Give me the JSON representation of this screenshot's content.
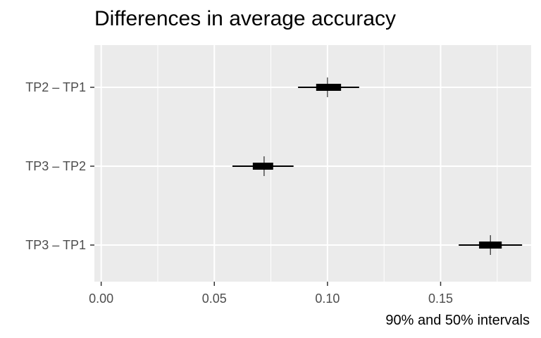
{
  "chart_data": {
    "type": "interval",
    "title": "Differences in average accuracy",
    "caption": "90% and 50% intervals",
    "xlabel": "",
    "ylabel": "",
    "xlim": [
      -0.003,
      0.19
    ],
    "x_ticks": [
      0.0,
      0.05,
      0.1,
      0.15
    ],
    "x_tick_labels": [
      "0.00",
      "0.05",
      "0.10",
      "0.15"
    ],
    "grid": true,
    "categories": [
      "TP2 – TP1",
      "TP3 – TP2",
      "TP3 – TP1"
    ],
    "intervals": [
      {
        "label": "TP2 – TP1",
        "median": 0.1,
        "inner": [
          0.095,
          0.106
        ],
        "outer": [
          0.087,
          0.114
        ]
      },
      {
        "label": "TP3 – TP2",
        "median": 0.072,
        "inner": [
          0.067,
          0.076
        ],
        "outer": [
          0.058,
          0.085
        ]
      },
      {
        "label": "TP3 – TP1",
        "median": 0.172,
        "inner": [
          0.167,
          0.177
        ],
        "outer": [
          0.158,
          0.186
        ]
      }
    ],
    "colors": {
      "panel": "#ebebeb",
      "grid": "#ffffff",
      "interval": "#000000"
    }
  }
}
